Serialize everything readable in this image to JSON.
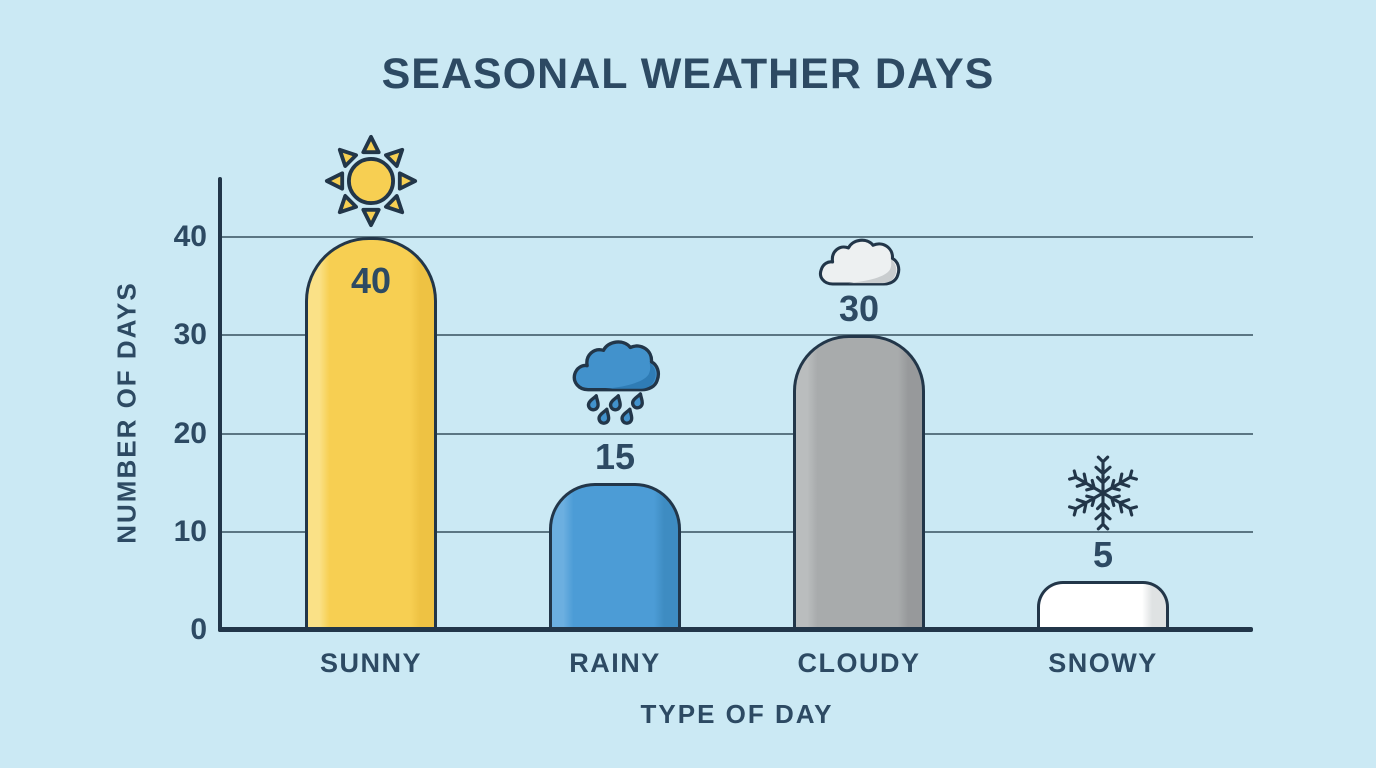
{
  "chart_data": {
    "type": "bar",
    "title": "SEASONAL WEATHER DAYS",
    "xlabel": "TYPE OF DAY",
    "ylabel": "NUMBER OF DAYS",
    "categories": [
      "SUNNY",
      "RAINY",
      "CLOUDY",
      "SNOWY"
    ],
    "values": [
      40,
      15,
      30,
      5
    ],
    "yticks": [
      0,
      10,
      20,
      30,
      40
    ],
    "ylim": [
      0,
      46
    ],
    "grid": true,
    "legend_position": "none",
    "bar_colors": [
      "#F7CF52",
      "#4C9CD6",
      "#A8ABAC",
      "#FFFFFF"
    ],
    "icons": [
      "sun-icon",
      "rain-cloud-icon",
      "cloud-icon",
      "snowflake-icon"
    ]
  },
  "colors": {
    "background": "#CBE9F4",
    "text": "#2D4A63",
    "outline": "#223649",
    "gridline": "#48626F",
    "sun_fill": "#F7CF52",
    "rain_cloud_fill": "#4292CC",
    "rain_cloud_shade": "#2F7CB5",
    "cloud_fill": "#EDF0F1",
    "cloud_shade": "#C9CDCF",
    "snowflake_stroke": "#223649"
  }
}
